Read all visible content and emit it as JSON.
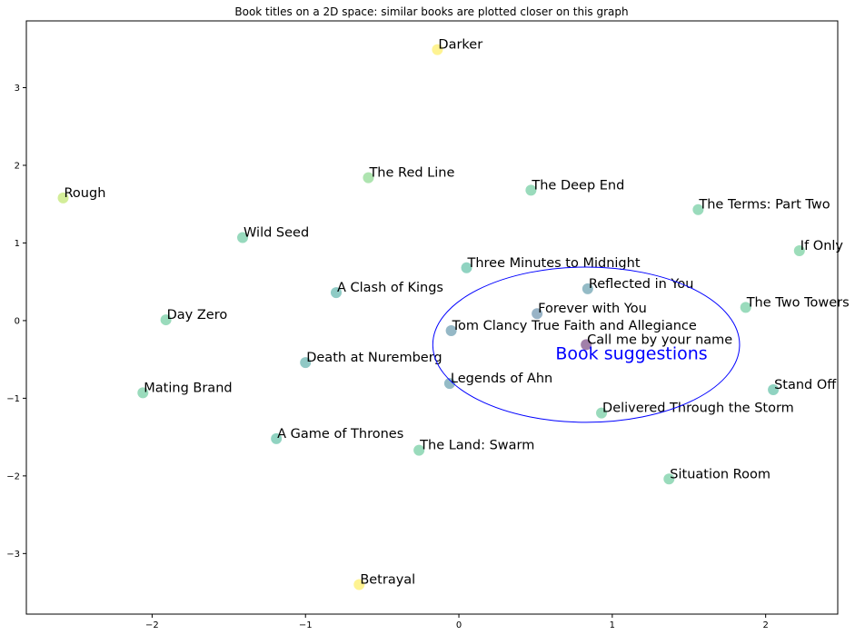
{
  "chart_data": {
    "type": "scatter",
    "title": "Book titles on a 2D space: similar books are plotted closer on this graph",
    "xlabel": "",
    "ylabel": "",
    "xlim": [
      -2.82,
      2.47
    ],
    "ylim": [
      -3.78,
      3.86
    ],
    "xticks": [
      -2,
      -1,
      0,
      1,
      2
    ],
    "yticks": [
      -3,
      -2,
      -1,
      0,
      1,
      2,
      3
    ],
    "grid": false,
    "points": [
      {
        "label": "Darker",
        "x": -0.14,
        "y": 3.49,
        "color": "#fde725"
      },
      {
        "label": "The Red Line",
        "x": -0.59,
        "y": 1.84,
        "color": "#5ec962"
      },
      {
        "label": "Rough",
        "x": -2.58,
        "y": 1.58,
        "color": "#a8db34"
      },
      {
        "label": "The Deep End",
        "x": 0.47,
        "y": 1.68,
        "color": "#35b779"
      },
      {
        "label": "The Terms: Part Two",
        "x": 1.56,
        "y": 1.43,
        "color": "#35b779"
      },
      {
        "label": "Wild Seed",
        "x": -1.41,
        "y": 1.07,
        "color": "#2fb47c"
      },
      {
        "label": "If Only",
        "x": 2.22,
        "y": 0.9,
        "color": "#3bbb75"
      },
      {
        "label": "Three Minutes to Midnight",
        "x": 0.05,
        "y": 0.68,
        "color": "#22a884"
      },
      {
        "label": "Reflected in You",
        "x": 0.84,
        "y": 0.41,
        "color": "#2a788e"
      },
      {
        "label": "A Clash of Kings",
        "x": -0.8,
        "y": 0.36,
        "color": "#1f988b"
      },
      {
        "label": "The Two Towers",
        "x": 1.87,
        "y": 0.17,
        "color": "#35b779"
      },
      {
        "label": "Forever with You",
        "x": 0.51,
        "y": 0.09,
        "color": "#31688e"
      },
      {
        "label": "Day Zero",
        "x": -1.91,
        "y": 0.01,
        "color": "#35b779"
      },
      {
        "label": "Tom Clancy True Faith and Allegiance",
        "x": -0.05,
        "y": -0.13,
        "color": "#2c728e"
      },
      {
        "label": "Call me by your name",
        "x": 0.83,
        "y": -0.31,
        "color": "#440154"
      },
      {
        "label": "Death at Nuremberg",
        "x": -1.0,
        "y": -0.54,
        "color": "#21918c"
      },
      {
        "label": "Legends of Ahn",
        "x": -0.06,
        "y": -0.81,
        "color": "#2a788e"
      },
      {
        "label": "Stand Off",
        "x": 2.05,
        "y": -0.89,
        "color": "#22a884"
      },
      {
        "label": "Mating Brand",
        "x": -2.06,
        "y": -0.93,
        "color": "#35b779"
      },
      {
        "label": "Delivered Through the Storm",
        "x": 0.93,
        "y": -1.19,
        "color": "#35b779"
      },
      {
        "label": "A Game of Thrones",
        "x": -1.19,
        "y": -1.52,
        "color": "#22a884"
      },
      {
        "label": "The Land: Swarm",
        "x": -0.26,
        "y": -1.67,
        "color": "#35b779"
      },
      {
        "label": "Situation Room",
        "x": 1.37,
        "y": -2.04,
        "color": "#35b779"
      },
      {
        "label": "Betrayal",
        "x": -0.65,
        "y": -3.4,
        "color": "#fde725"
      }
    ],
    "annotation": {
      "text": "Book suggestions",
      "color": "#0000ff",
      "ellipse": {
        "cx": 0.83,
        "cy": -0.31,
        "rx": 1.0,
        "ry": 1.0
      }
    }
  }
}
